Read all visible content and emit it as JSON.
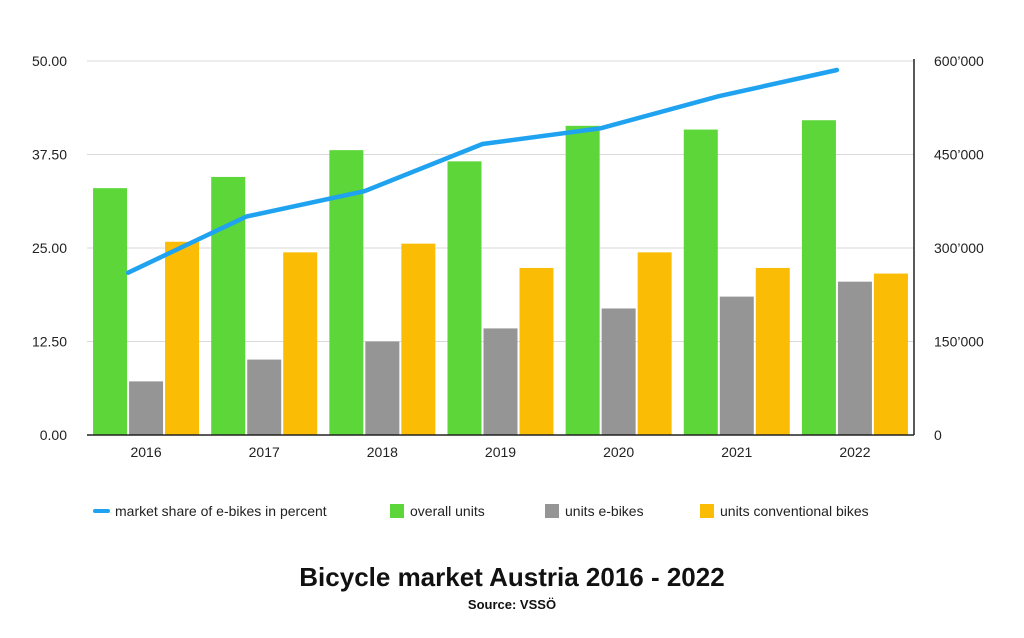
{
  "chart_data": {
    "type": "bar",
    "title": "Bicycle market Austria 2016 - 2022",
    "subtitle": "Source: VSSÖ",
    "categories": [
      "2016",
      "2017",
      "2018",
      "2019",
      "2020",
      "2021",
      "2022"
    ],
    "series": [
      {
        "name": "overall units",
        "type": "bar",
        "axis": "right",
        "color": "#5dd639",
        "values": [
          396000,
          414000,
          457000,
          439000,
          496000,
          490000,
          505000
        ]
      },
      {
        "name": "units e-bikes",
        "type": "bar",
        "axis": "right",
        "color": "#959595",
        "values": [
          86000,
          121000,
          150000,
          171000,
          203000,
          222000,
          246000
        ]
      },
      {
        "name": "units conventional bikes",
        "type": "bar",
        "axis": "right",
        "color": "#fbbc05",
        "values": [
          310000,
          293000,
          307000,
          268000,
          293000,
          268000,
          259000
        ]
      },
      {
        "name": "market share of e-bikes in percent",
        "type": "line",
        "axis": "left",
        "color": "#1fa3f0",
        "values": [
          21.7,
          29.2,
          32.6,
          38.9,
          41.0,
          45.3,
          48.8
        ]
      }
    ],
    "y_left": {
      "ylim": [
        0,
        50
      ],
      "ticks": [
        "0.00",
        "12.50",
        "25.00",
        "37.50",
        "50.00"
      ],
      "tick_values": [
        0,
        12.5,
        25,
        37.5,
        50
      ]
    },
    "y_right": {
      "ylim": [
        0,
        600000
      ],
      "ticks": [
        "0",
        "150’000",
        "300’000",
        "450’000",
        "600’000"
      ],
      "tick_values": [
        0,
        150000,
        300000,
        450000,
        600000
      ]
    },
    "grid": true,
    "legend_position": "bottom"
  }
}
